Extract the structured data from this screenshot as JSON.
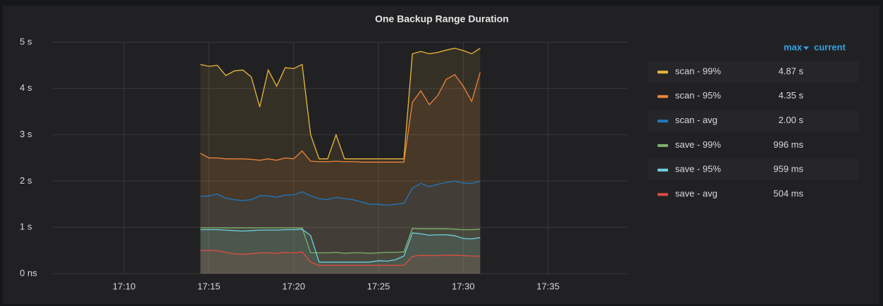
{
  "chart_data": {
    "type": "line",
    "title": "One Backup Range Duration",
    "x": [
      "17:14:30",
      "17:15:00",
      "17:15:30",
      "17:16:00",
      "17:16:30",
      "17:17:00",
      "17:17:30",
      "17:18:00",
      "17:18:30",
      "17:19:00",
      "17:19:30",
      "17:20:00",
      "17:20:30",
      "17:21:00",
      "17:21:30",
      "17:22:00",
      "17:22:30",
      "17:23:00",
      "17:23:30",
      "17:24:00",
      "17:24:30",
      "17:25:00",
      "17:25:30",
      "17:26:00",
      "17:26:30",
      "17:27:00",
      "17:27:30",
      "17:28:00",
      "17:28:30",
      "17:29:00",
      "17:29:30",
      "17:30:00",
      "17:30:30",
      "17:31:00"
    ],
    "xlim": [
      "17:05:48",
      "17:39:40"
    ],
    "xticks": [
      "17:10",
      "17:15",
      "17:20",
      "17:25",
      "17:30",
      "17:35"
    ],
    "ylim": [
      0,
      5
    ],
    "yticks": [
      {
        "value": 0,
        "label": "0 ns"
      },
      {
        "value": 1,
        "label": "1 s"
      },
      {
        "value": 2,
        "label": "2 s"
      },
      {
        "value": 3,
        "label": "3 s"
      },
      {
        "value": 4,
        "label": "4 s"
      },
      {
        "value": 5,
        "label": "5 s"
      }
    ],
    "grid": true,
    "fill": true,
    "legend_columns": [
      "max",
      "current"
    ],
    "series": [
      {
        "name": "scan - 99%",
        "color": "#eab839",
        "max_label": "4.87 s",
        "values": [
          4.52,
          4.48,
          4.5,
          4.28,
          4.38,
          4.4,
          4.25,
          3.6,
          4.4,
          4.05,
          4.45,
          4.43,
          4.52,
          3.0,
          2.48,
          2.48,
          3.0,
          2.48,
          2.48,
          2.48,
          2.48,
          2.48,
          2.48,
          2.48,
          2.48,
          4.75,
          4.8,
          4.75,
          4.78,
          4.83,
          4.87,
          4.82,
          4.75,
          4.87
        ]
      },
      {
        "name": "scan - 95%",
        "color": "#ef843c",
        "max_label": "4.35 s",
        "values": [
          2.6,
          2.5,
          2.5,
          2.48,
          2.48,
          2.48,
          2.47,
          2.45,
          2.48,
          2.45,
          2.5,
          2.48,
          2.65,
          2.43,
          2.42,
          2.42,
          2.43,
          2.42,
          2.42,
          2.41,
          2.41,
          2.41,
          2.41,
          2.41,
          2.41,
          3.7,
          3.95,
          3.65,
          3.85,
          4.2,
          4.3,
          4.05,
          3.72,
          4.35
        ]
      },
      {
        "name": "scan - avg",
        "color": "#1f78c1",
        "max_label": "2.00 s",
        "values": [
          1.67,
          1.68,
          1.72,
          1.63,
          1.6,
          1.58,
          1.6,
          1.68,
          1.68,
          1.65,
          1.7,
          1.7,
          1.77,
          1.68,
          1.62,
          1.6,
          1.65,
          1.62,
          1.6,
          1.55,
          1.5,
          1.5,
          1.48,
          1.5,
          1.52,
          1.85,
          1.95,
          1.88,
          1.93,
          1.97,
          2.0,
          1.96,
          1.95,
          2.0
        ]
      },
      {
        "name": "save - 99%",
        "color": "#7eb26d",
        "max_label": "996 ms",
        "values": [
          0.99,
          0.99,
          0.99,
          0.99,
          0.99,
          0.99,
          0.99,
          0.99,
          0.99,
          0.99,
          0.99,
          0.99,
          0.99,
          0.45,
          0.45,
          0.45,
          0.46,
          0.44,
          0.45,
          0.45,
          0.44,
          0.45,
          0.46,
          0.46,
          0.47,
          0.98,
          0.97,
          0.97,
          0.97,
          0.97,
          0.96,
          0.95,
          0.95,
          0.96
        ]
      },
      {
        "name": "save - 95%",
        "color": "#6ed0e0",
        "max_label": "959 ms",
        "values": [
          0.95,
          0.95,
          0.95,
          0.94,
          0.93,
          0.92,
          0.93,
          0.94,
          0.94,
          0.94,
          0.95,
          0.95,
          0.96,
          0.82,
          0.25,
          0.25,
          0.25,
          0.25,
          0.25,
          0.25,
          0.25,
          0.28,
          0.27,
          0.3,
          0.38,
          0.88,
          0.86,
          0.83,
          0.84,
          0.84,
          0.82,
          0.76,
          0.75,
          0.78
        ]
      },
      {
        "name": "save - avg",
        "color": "#e24d42",
        "max_label": "504 ms",
        "values": [
          0.5,
          0.5,
          0.5,
          0.46,
          0.43,
          0.42,
          0.43,
          0.45,
          0.45,
          0.44,
          0.46,
          0.45,
          0.47,
          0.25,
          0.18,
          0.18,
          0.18,
          0.18,
          0.18,
          0.18,
          0.18,
          0.18,
          0.18,
          0.18,
          0.18,
          0.37,
          0.4,
          0.39,
          0.39,
          0.4,
          0.4,
          0.39,
          0.38,
          0.38
        ]
      }
    ]
  }
}
